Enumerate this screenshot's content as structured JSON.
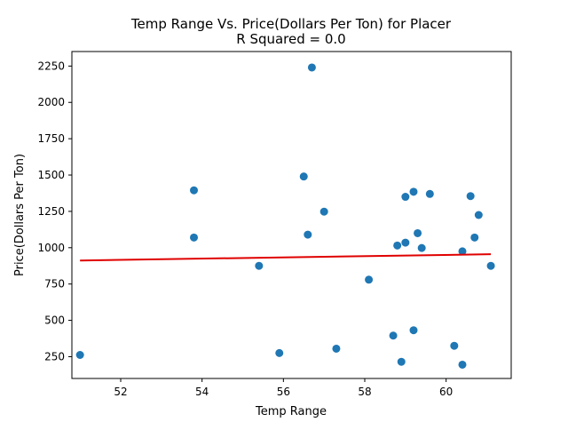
{
  "chart_data": {
    "type": "scatter",
    "title_line1": "Temp Range Vs. Price(Dollars Per Ton) for Placer",
    "title_line2": "R Squared =  0.0",
    "xlabel": "Temp Range",
    "ylabel": "Price(Dollars Per Ton)",
    "xlim": [
      50.8,
      61.6
    ],
    "ylim": [
      100,
      2350
    ],
    "x_ticks": [
      52,
      54,
      56,
      58,
      60
    ],
    "y_ticks": [
      250,
      500,
      750,
      1000,
      1250,
      1500,
      1750,
      2000,
      2250
    ],
    "grid": false,
    "colors": {
      "points": "#1f77b4",
      "trendline": "#e00000",
      "axes": "#000000"
    },
    "points": [
      {
        "x": 51.0,
        "y": 262
      },
      {
        "x": 53.8,
        "y": 1395
      },
      {
        "x": 53.8,
        "y": 1070
      },
      {
        "x": 55.4,
        "y": 875
      },
      {
        "x": 55.9,
        "y": 275
      },
      {
        "x": 56.5,
        "y": 1490
      },
      {
        "x": 56.6,
        "y": 1090
      },
      {
        "x": 56.7,
        "y": 2240
      },
      {
        "x": 57.0,
        "y": 1248
      },
      {
        "x": 57.3,
        "y": 305
      },
      {
        "x": 58.1,
        "y": 780
      },
      {
        "x": 58.7,
        "y": 395
      },
      {
        "x": 58.8,
        "y": 1015
      },
      {
        "x": 58.9,
        "y": 215
      },
      {
        "x": 59.0,
        "y": 1350
      },
      {
        "x": 59.0,
        "y": 1035
      },
      {
        "x": 59.2,
        "y": 1385
      },
      {
        "x": 59.2,
        "y": 432
      },
      {
        "x": 59.3,
        "y": 1100
      },
      {
        "x": 59.4,
        "y": 998
      },
      {
        "x": 59.6,
        "y": 1370
      },
      {
        "x": 60.2,
        "y": 325
      },
      {
        "x": 60.4,
        "y": 975
      },
      {
        "x": 60.4,
        "y": 195
      },
      {
        "x": 60.6,
        "y": 1355
      },
      {
        "x": 60.7,
        "y": 1070
      },
      {
        "x": 60.8,
        "y": 1225
      },
      {
        "x": 61.1,
        "y": 875
      }
    ],
    "trendline": {
      "x_start": 51.0,
      "y_start": 912,
      "x_end": 61.1,
      "y_end": 955
    }
  }
}
